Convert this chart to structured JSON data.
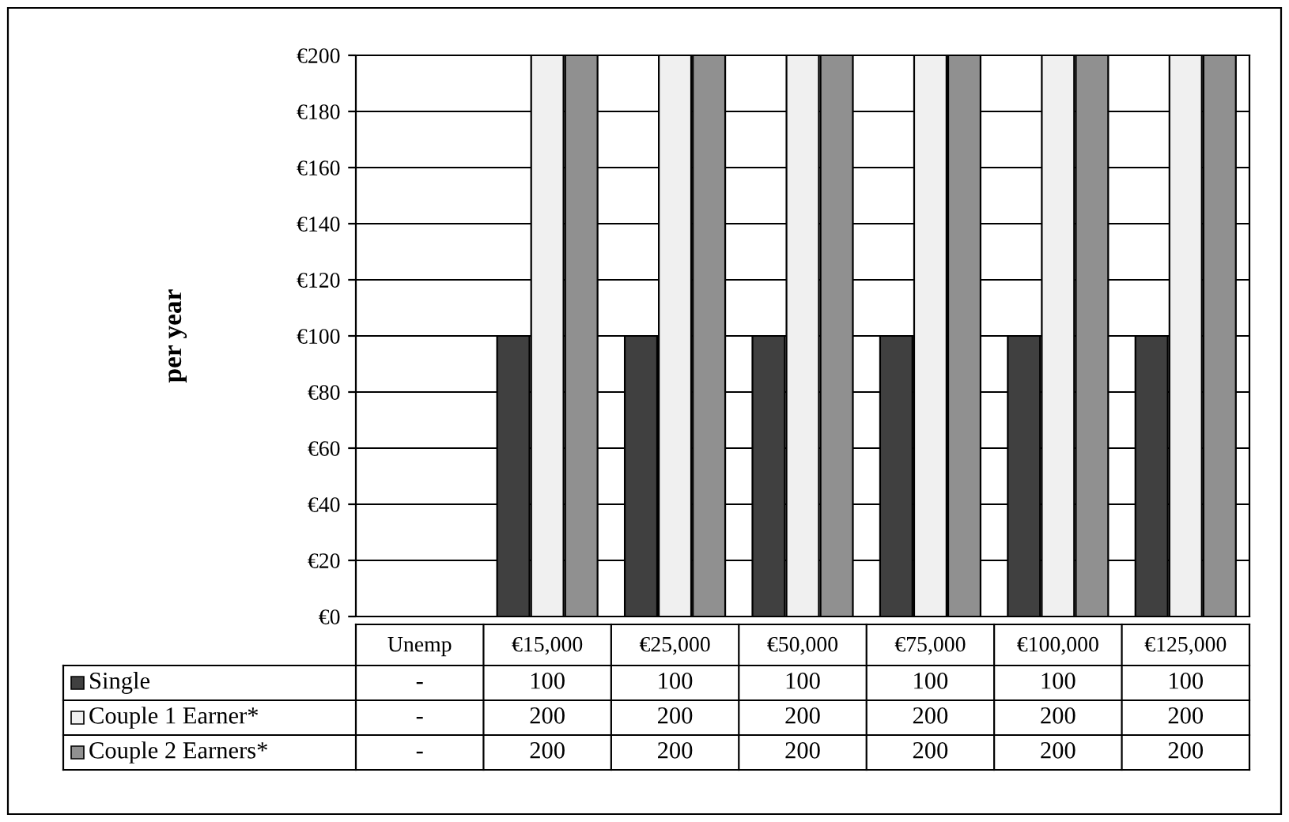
{
  "chart_data": {
    "type": "bar",
    "ylabel": "per year",
    "categories": [
      "Unemp",
      "€15,000",
      "€25,000",
      "€50,000",
      "€75,000",
      "€100,000",
      "€125,000"
    ],
    "series": [
      {
        "name": "Single",
        "color": "#404040",
        "values": [
          null,
          100,
          100,
          100,
          100,
          100,
          100
        ],
        "value_labels": [
          "-",
          "100",
          "100",
          "100",
          "100",
          "100",
          "100"
        ]
      },
      {
        "name": "Couple 1 Earner*",
        "color": "#f0f0f0",
        "values": [
          null,
          200,
          200,
          200,
          200,
          200,
          200
        ],
        "value_labels": [
          "-",
          "200",
          "200",
          "200",
          "200",
          "200",
          "200"
        ]
      },
      {
        "name": "Couple 2 Earners*",
        "color": "#909090",
        "values": [
          null,
          200,
          200,
          200,
          200,
          200,
          200
        ],
        "value_labels": [
          "-",
          "200",
          "200",
          "200",
          "200",
          "200",
          "200"
        ]
      }
    ],
    "ylim": [
      0,
      200
    ],
    "yticks": [
      {
        "value": 0,
        "label": "€0"
      },
      {
        "value": 20,
        "label": "€20"
      },
      {
        "value": 40,
        "label": "€40"
      },
      {
        "value": 60,
        "label": "€60"
      },
      {
        "value": 80,
        "label": "€80"
      },
      {
        "value": 100,
        "label": "€100"
      },
      {
        "value": 120,
        "label": "€120"
      },
      {
        "value": 140,
        "label": "€140"
      },
      {
        "value": 160,
        "label": "€160"
      },
      {
        "value": 180,
        "label": "€180"
      },
      {
        "value": 200,
        "label": "€200"
      }
    ],
    "grid": "y",
    "legend": "bottom"
  }
}
